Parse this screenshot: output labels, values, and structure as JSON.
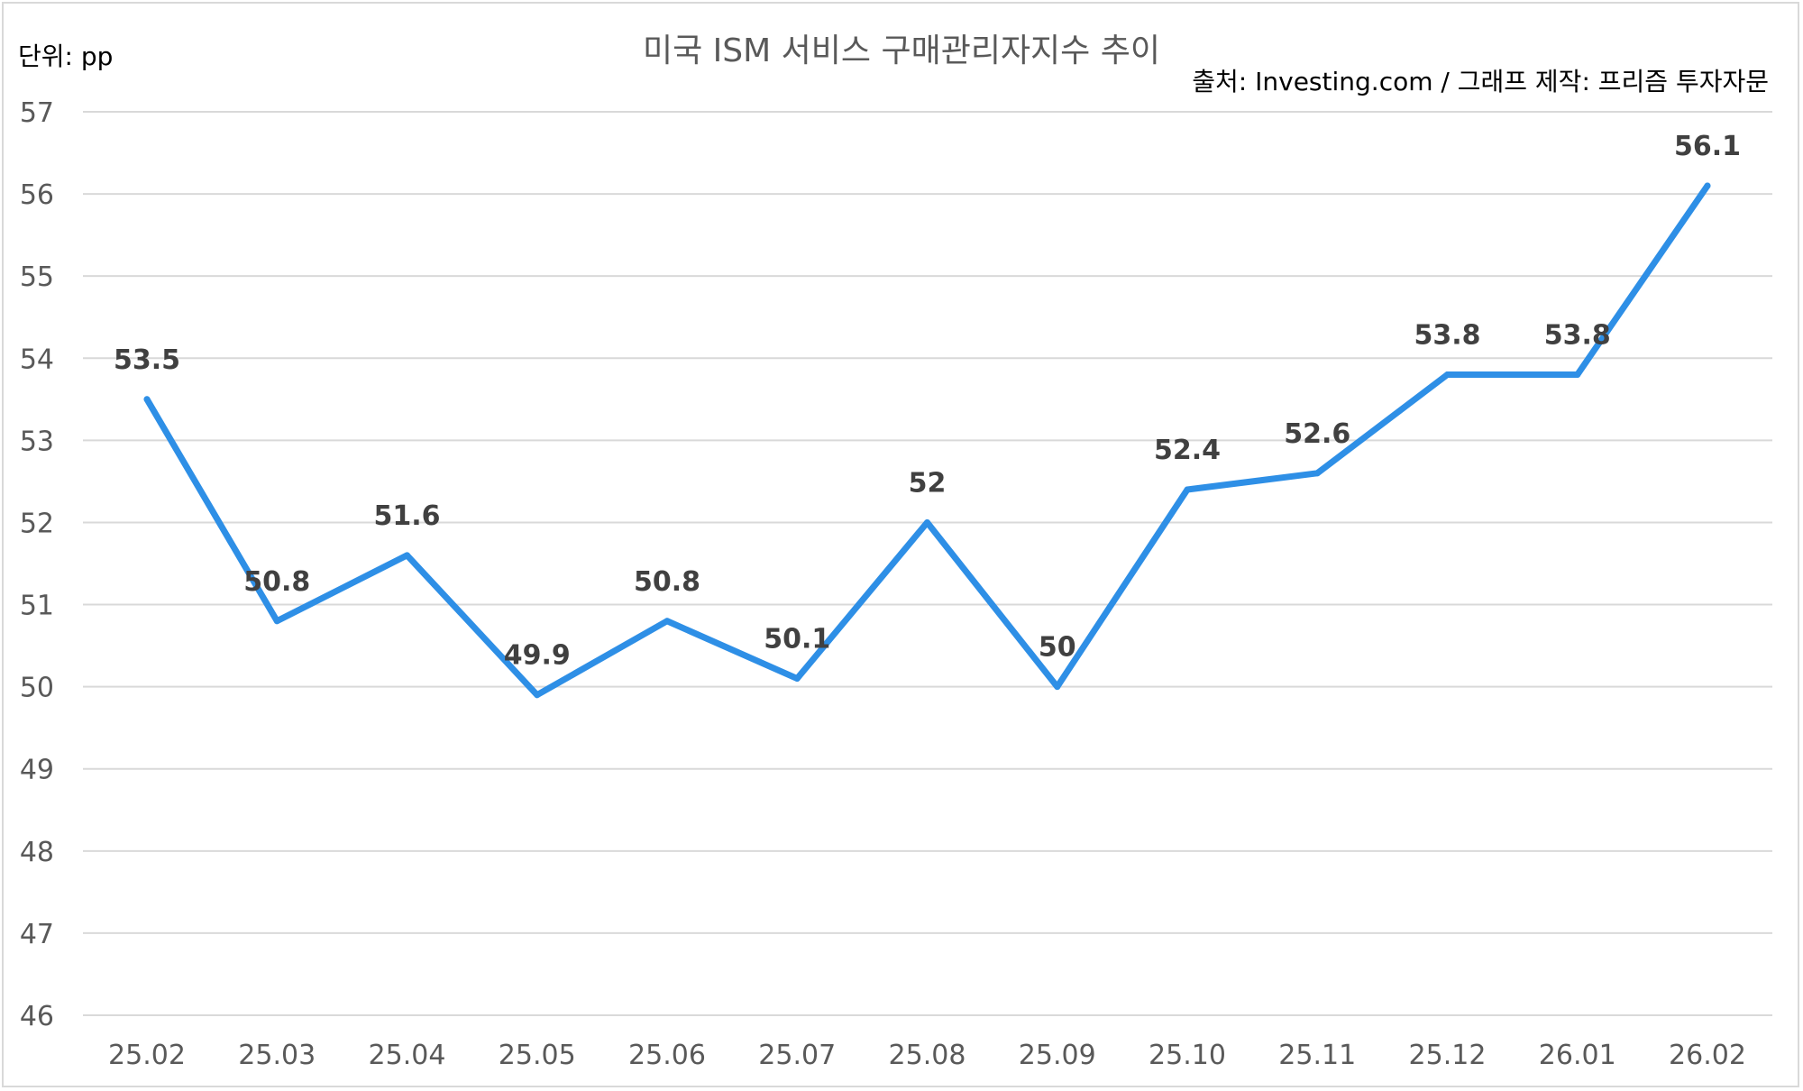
{
  "chart_data": {
    "type": "line",
    "title": "미국 ISM 서비스 구매관리자지수 추이",
    "unit_label": "단위: pp",
    "source_label": "출처: Investing.com / 그래프 제작: 프리즘 투자자문",
    "categories": [
      "25.02",
      "25.03",
      "25.04",
      "25.05",
      "25.06",
      "25.07",
      "25.08",
      "25.09",
      "25.10",
      "25.11",
      "25.12",
      "26.01",
      "26.02"
    ],
    "series": [
      {
        "values": [
          53.5,
          50.8,
          51.6,
          49.9,
          50.8,
          50.1,
          52,
          50,
          52.4,
          52.6,
          53.8,
          53.8,
          56.1
        ],
        "labels": [
          "53.5",
          "50.8",
          "51.6",
          "49.9",
          "50.8",
          "50.1",
          "52",
          "50",
          "52.4",
          "52.6",
          "53.8",
          "53.8",
          "56.1"
        ],
        "color": "#2e8fe6"
      }
    ],
    "y_ticks": [
      "57",
      "56",
      "55",
      "54",
      "53",
      "52",
      "51",
      "50",
      "49",
      "48",
      "47",
      "46"
    ],
    "ylim": [
      46,
      57
    ],
    "grid": true,
    "legend": "none"
  }
}
